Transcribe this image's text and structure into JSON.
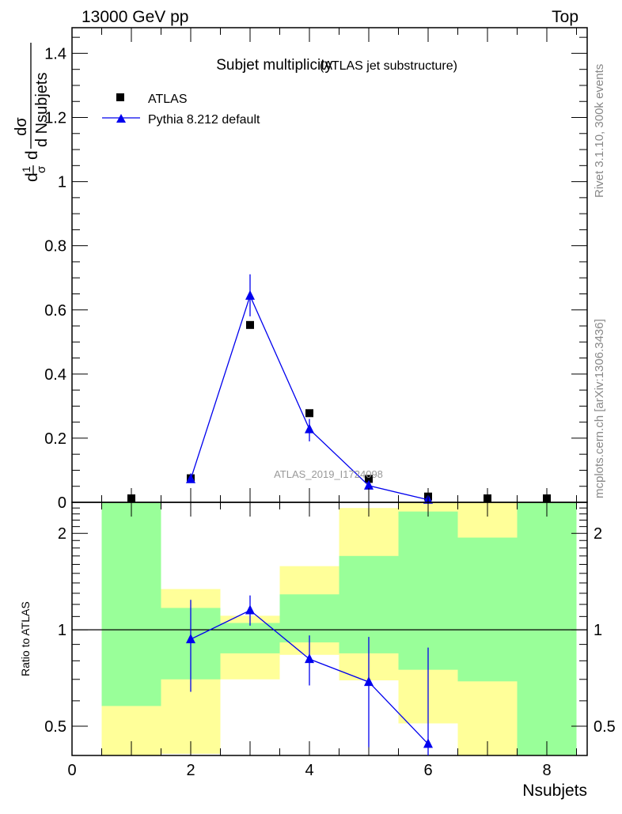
{
  "header": {
    "left": "13000 GeV pp",
    "right": "Top"
  },
  "side": {
    "rivet": "Rivet 3.1.10,  300k events",
    "mcplots": "mcplots.cern.ch [arXiv:1306.3436]"
  },
  "chart_data": [
    {
      "type": "scatter",
      "title": "Subjet multiplicity",
      "subtitle": "(ATLAS jet substructure)",
      "watermark": "ATLAS_2019_I1724098",
      "ylabel_parts": {
        "d": "d",
        "one": "1",
        "sigma": "σ",
        "dsigma": "dσ",
        "dN": "d Nsubjets"
      },
      "xlim": [
        0,
        8.68
      ],
      "ylim": [
        0,
        1.48
      ],
      "yticks": [
        0,
        0.2,
        0.4,
        0.6,
        0.8,
        1,
        1.2,
        1.4
      ],
      "ytick_labels": [
        "0",
        "0.2",
        "0.4",
        "0.6",
        "0.8",
        "1",
        "1.2",
        "1.4"
      ],
      "legend": [
        "ATLAS",
        "Pythia 8.212 default"
      ],
      "legend_position": "top-left",
      "series": [
        {
          "name": "ATLAS",
          "color": "#000000",
          "marker": "square",
          "x": [
            1,
            2,
            3,
            4,
            5,
            6,
            7,
            8
          ],
          "y": [
            0.003,
            0.075,
            0.553,
            0.278,
            0.073,
            0.018,
            0.004,
            0.003
          ]
        },
        {
          "name": "Pythia 8.212 default",
          "color": "#0000ee",
          "marker": "triangle",
          "x": [
            2,
            3,
            4,
            5,
            6
          ],
          "y": [
            0.072,
            0.644,
            0.228,
            0.052,
            0.008
          ],
          "err_lo": [
            0.062,
            0.58,
            0.19,
            0.04,
            0.002
          ],
          "err_hi": [
            0.09,
            0.711,
            0.26,
            0.065,
            0.014
          ]
        }
      ]
    },
    {
      "type": "scatter",
      "ylabel": "Ratio to ATLAS",
      "xlabel": "Nsubjets",
      "yscale": "log",
      "xlim": [
        0,
        8.68
      ],
      "ylim": [
        0.405,
        2.5
      ],
      "xticks": [
        0,
        2,
        4,
        6,
        8
      ],
      "xtick_labels": [
        "0",
        "2",
        "4",
        "6",
        "8"
      ],
      "yticks": [
        0.5,
        1,
        2
      ],
      "ytick_labels": [
        "0.5",
        "1",
        "2"
      ],
      "bands": {
        "bin_lo": [
          0.5,
          1.5,
          2.5,
          3.5,
          4.5,
          5.5,
          6.5,
          7.5
        ],
        "bin_hi": [
          1.5,
          2.5,
          3.5,
          4.5,
          5.5,
          6.5,
          7.5,
          8.5
        ],
        "yellow_lo": [
          0.3,
          0.41,
          0.7,
          0.835,
          0.695,
          0.51,
          0.3,
          0.3
        ],
        "yellow_hi": [
          3,
          1.34,
          1.106,
          1.58,
          2.4,
          3,
          3,
          3
        ],
        "green_lo": [
          0.578,
          0.7,
          0.844,
          0.913,
          0.844,
          0.75,
          0.69,
          0.3
        ],
        "green_hi": [
          3,
          1.17,
          1.05,
          1.29,
          1.7,
          2.34,
          1.94,
          3
        ],
        "yellow_color": "#ffff99",
        "green_color": "#99ff99"
      },
      "series": [
        {
          "name": "Pythia 8.212 default",
          "color": "#0000ee",
          "x": [
            2,
            3,
            4,
            5,
            6
          ],
          "y": [
            0.934,
            1.15,
            0.81,
            0.687,
            0.44
          ],
          "err_lo": [
            0.64,
            1.03,
            0.67,
            0.43,
            0.3
          ],
          "err_hi": [
            1.24,
            1.28,
            0.96,
            0.95,
            0.88
          ]
        }
      ]
    }
  ]
}
